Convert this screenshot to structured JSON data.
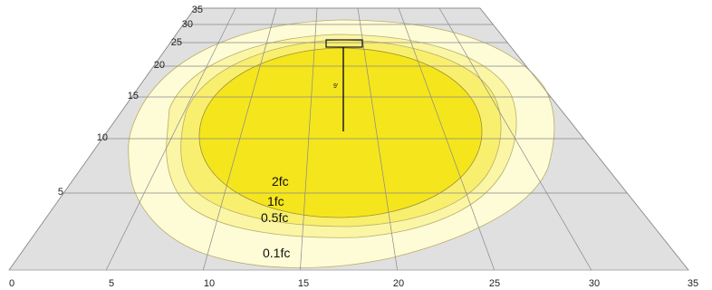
{
  "x_axis": {
    "ticks": [
      "0",
      "5",
      "10",
      "15",
      "20",
      "25",
      "30",
      "35"
    ]
  },
  "y_axis": {
    "ticks": [
      "5",
      "10",
      "15",
      "20",
      "25",
      "30",
      "35"
    ]
  },
  "contours": [
    {
      "label": "0.1fc",
      "color": "#fefcd6"
    },
    {
      "label": "0.5fc",
      "color": "#fbf5a6"
    },
    {
      "label": "1fc",
      "color": "#f9ef6e"
    },
    {
      "label": "2fc",
      "color": "#f5e51d"
    }
  ],
  "fixture": {
    "mount_height_label": "9'"
  },
  "colors": {
    "floor": "#e0e0e0",
    "grid": "#888888"
  }
}
